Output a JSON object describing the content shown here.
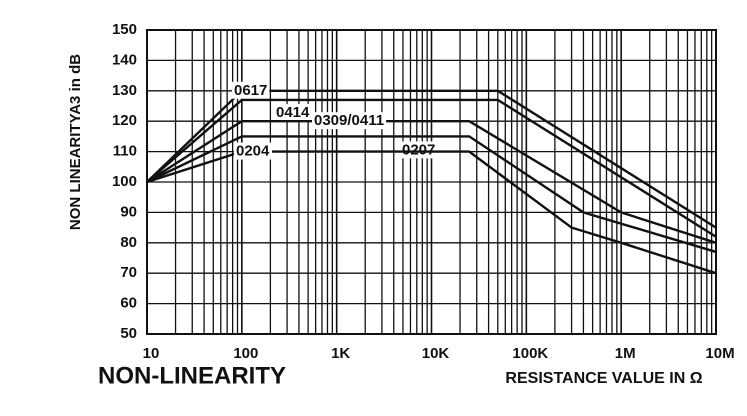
{
  "chart_data": {
    "type": "line",
    "title": "NON-LINEARITY",
    "x_label": "RESISTANCE VALUE IN Ω",
    "y_label": "NON LINEARITYA3 in dB",
    "log_x": true,
    "grid": true,
    "xlim": [
      10,
      10000000
    ],
    "ylim": [
      50,
      150
    ],
    "xticks": [
      10,
      100,
      {
        "value": 1000,
        "label": "1K"
      },
      {
        "value": 10000,
        "label": "10K"
      },
      {
        "value": 100000,
        "label": "100K"
      },
      {
        "value": 1000000,
        "label": "1M"
      },
      {
        "value": 10000000,
        "label": "10M"
      }
    ],
    "yticks": [
      50,
      60,
      70,
      80,
      90,
      100,
      110,
      120,
      130,
      140,
      150
    ],
    "series": [
      {
        "name": "0617",
        "color": "#111111",
        "x": [
          10,
          100,
          50000,
          10000000
        ],
        "values": [
          100,
          130,
          130,
          85
        ]
      },
      {
        "name": "0414",
        "color": "#111111",
        "x": [
          10,
          100,
          50000,
          10000000
        ],
        "values": [
          100,
          127,
          127,
          82
        ]
      },
      {
        "name": "0309/0411",
        "color": "#111111",
        "x": [
          10,
          100,
          25000,
          1000000,
          10000000
        ],
        "values": [
          100,
          120,
          120,
          90,
          80
        ]
      },
      {
        "name": "0207",
        "color": "#111111",
        "x": [
          10,
          100,
          25000,
          400000,
          10000000
        ],
        "values": [
          100,
          115,
          115,
          90,
          77
        ]
      },
      {
        "name": "0204",
        "color": "#111111",
        "x": [
          10,
          100,
          25000,
          300000,
          1000000,
          10000000
        ],
        "values": [
          100,
          110,
          110,
          85,
          80,
          70
        ]
      }
    ]
  }
}
